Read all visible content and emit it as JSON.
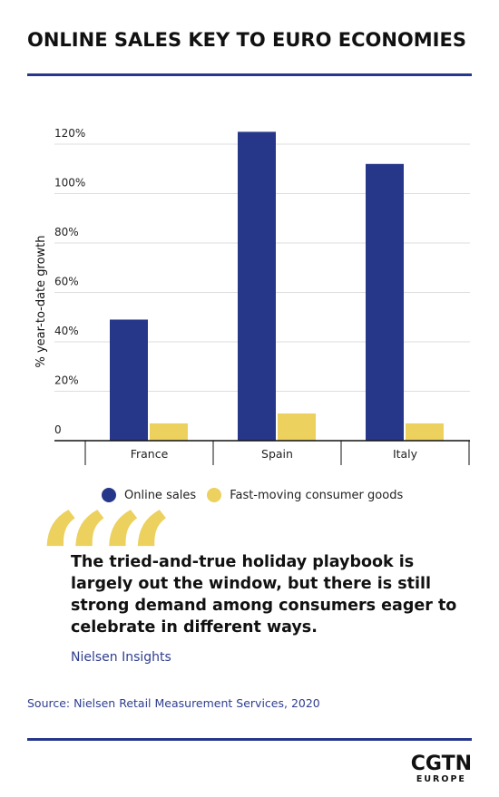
{
  "title": "ONLINE SALES KEY TO EURO ECONOMIES",
  "colors": {
    "accent": "#27388a",
    "online": "#26378a",
    "fmcg": "#ecd15f",
    "grid": "#dddddd",
    "source_text": "#2f3e8f"
  },
  "chart_data": {
    "type": "bar",
    "categories": [
      "France",
      "Spain",
      "Italy"
    ],
    "series": [
      {
        "name": "Online sales",
        "values": [
          49,
          125,
          112
        ]
      },
      {
        "name": "Fast-moving consumer goods",
        "values": [
          7,
          11,
          7
        ]
      }
    ],
    "ylabel": "% year-to-date growth",
    "ylim": [
      0,
      120
    ],
    "yticks": [
      0,
      20,
      40,
      60,
      80,
      100,
      120
    ],
    "ytick_labels": [
      "0",
      "20%",
      "40%",
      "60%",
      "80%",
      "100%",
      "120%"
    ],
    "grid": true,
    "legend": "bottom"
  },
  "legend": {
    "online": "Online sales",
    "fmcg": "Fast-moving consumer goods"
  },
  "quote": {
    "marks": "“",
    "text": "The tried-and-true holiday playbook is largely out the window, but there is still strong demand among consumers eager to celebrate in different ways.",
    "attribution": "Nielsen Insights"
  },
  "source": "Source:  Nielsen Retail Measurement Services, 2020",
  "logo": {
    "main": "CGTN",
    "sub": "EUROPE"
  }
}
